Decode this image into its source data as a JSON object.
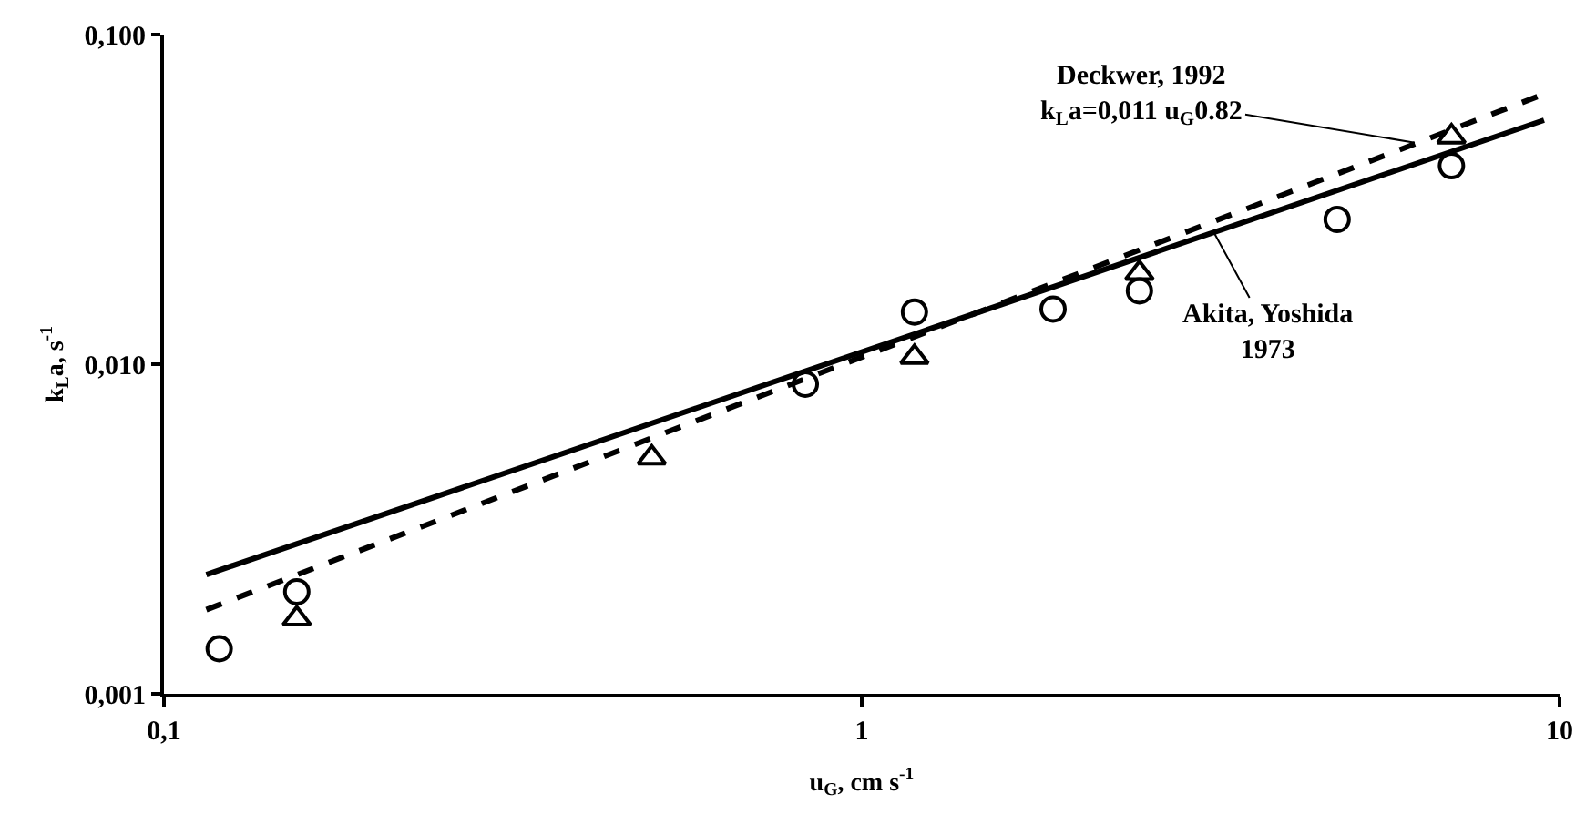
{
  "chart_data": {
    "type": "scatter",
    "xlabel": "u$_{G}$, cm s$^{-1}$",
    "ylabel": "k$_{L}$a, s$^{-1}$",
    "log": "xy",
    "xlim": [
      0.1,
      10
    ],
    "xticks": [
      {
        "value": 0.1,
        "label": "0,1"
      },
      1,
      10
    ],
    "ylim": [
      0.001,
      0.1
    ],
    "yticks": [
      {
        "value": 0.001,
        "label": "0,001"
      },
      {
        "value": 0.01,
        "label": "0,010"
      },
      {
        "value": 0.1,
        "label": "0,100"
      }
    ],
    "series": [
      {
        "marker": "circle",
        "color": "#000000",
        "x": [
          0.12,
          0.155,
          0.83,
          1.19,
          1.88,
          2.5,
          4.8,
          7.0
        ],
        "values": [
          0.00137,
          0.00204,
          0.0087,
          0.0144,
          0.0147,
          0.0167,
          0.0275,
          0.04
        ]
      },
      {
        "marker": "triangle",
        "color": "#000000",
        "x": [
          0.155,
          0.5,
          1.19,
          2.5,
          7.0
        ],
        "values": [
          0.00169,
          0.0052,
          0.0105,
          0.0189,
          0.049
        ]
      },
      {
        "type": "line",
        "line_style": "dashed",
        "color": "#000000",
        "x": [
          0.115,
          9.5
        ],
        "values": [
          0.0018,
          0.066
        ]
      },
      {
        "type": "line",
        "line_style": "solid",
        "color": "#000000",
        "x": [
          0.115,
          9.5
        ],
        "values": [
          0.0023,
          0.055
        ]
      }
    ],
    "annotations": [
      {
        "text": "Deckwer, 1992\nk$_{L}$a=0,011 u$_{G}$0.82",
        "x": 6.2,
        "y": 0.047
      },
      {
        "text": "Akita, Yoshida\n1973",
        "x": 3.2,
        "y": 0.025
      }
    ]
  }
}
